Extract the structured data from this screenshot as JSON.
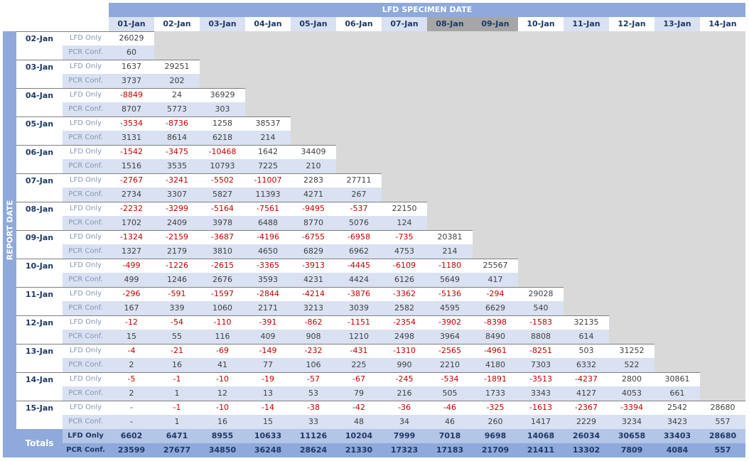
{
  "title": "LFD SPECIMEN DATE",
  "side_title": "REPORT DATE",
  "columns": [
    "01-Jan",
    "02-Jan",
    "03-Jan",
    "04-Jan",
    "05-Jan",
    "06-Jan",
    "07-Jan",
    "08-Jan",
    "09-Jan",
    "10-Jan",
    "11-Jan",
    "12-Jan",
    "13-Jan",
    "14-Jan"
  ],
  "highlight_columns": [
    "08-Jan",
    "09-Jan"
  ],
  "row_labels": {
    "lfd": "LFD Only",
    "pcr": "PCR Conf."
  },
  "rows": [
    {
      "date": "02-Jan",
      "lfd": [
        "26029"
      ],
      "pcr": [
        "60"
      ]
    },
    {
      "date": "03-Jan",
      "lfd": [
        "1637",
        "29251"
      ],
      "pcr": [
        "3737",
        "202"
      ]
    },
    {
      "date": "04-Jan",
      "lfd": [
        "-8849",
        "24",
        "36929"
      ],
      "pcr": [
        "8707",
        "5773",
        "303"
      ]
    },
    {
      "date": "05-Jan",
      "lfd": [
        "-3534",
        "-8736",
        "1258",
        "38537"
      ],
      "pcr": [
        "3131",
        "8614",
        "6218",
        "214"
      ]
    },
    {
      "date": "06-Jan",
      "lfd": [
        "-1542",
        "-3475",
        "-10468",
        "1642",
        "34409"
      ],
      "pcr": [
        "1516",
        "3535",
        "10793",
        "7225",
        "210"
      ]
    },
    {
      "date": "07-Jan",
      "lfd": [
        "-2767",
        "-3241",
        "-5502",
        "-11007",
        "2283",
        "27711"
      ],
      "pcr": [
        "2734",
        "3307",
        "5827",
        "11393",
        "4271",
        "267"
      ]
    },
    {
      "date": "08-Jan",
      "lfd": [
        "-2232",
        "-3299",
        "-5164",
        "-7561",
        "-9495",
        "-537",
        "22150"
      ],
      "pcr": [
        "1702",
        "2409",
        "3978",
        "6488",
        "8770",
        "5076",
        "124"
      ]
    },
    {
      "date": "09-Jan",
      "lfd": [
        "-1324",
        "-2159",
        "-3687",
        "-4196",
        "-6755",
        "-6958",
        "-735",
        "20381"
      ],
      "pcr": [
        "1327",
        "2179",
        "3810",
        "4650",
        "6829",
        "6962",
        "4753",
        "214"
      ]
    },
    {
      "date": "10-Jan",
      "lfd": [
        "-499",
        "-1226",
        "-2615",
        "-3365",
        "-3913",
        "-4445",
        "-6109",
        "-1180",
        "25567"
      ],
      "pcr": [
        "499",
        "1246",
        "2676",
        "3593",
        "4231",
        "4424",
        "6126",
        "5649",
        "417"
      ]
    },
    {
      "date": "11-Jan",
      "lfd": [
        "-296",
        "-591",
        "-1597",
        "-2844",
        "-4214",
        "-3876",
        "-3362",
        "-5136",
        "-294",
        "29028"
      ],
      "pcr": [
        "167",
        "339",
        "1060",
        "2171",
        "3213",
        "3039",
        "2582",
        "4595",
        "6629",
        "540"
      ]
    },
    {
      "date": "12-Jan",
      "lfd": [
        "-12",
        "-54",
        "-110",
        "-391",
        "-862",
        "-1151",
        "-2354",
        "-3902",
        "-8398",
        "-1583",
        "32135"
      ],
      "pcr": [
        "15",
        "55",
        "116",
        "409",
        "908",
        "1210",
        "2498",
        "3964",
        "8490",
        "8808",
        "614"
      ]
    },
    {
      "date": "13-Jan",
      "lfd": [
        "-4",
        "-21",
        "-69",
        "-149",
        "-232",
        "-431",
        "-1310",
        "-2565",
        "-4961",
        "-8251",
        "503",
        "31252"
      ],
      "pcr": [
        "2",
        "16",
        "41",
        "77",
        "106",
        "225",
        "990",
        "2210",
        "4180",
        "7303",
        "6332",
        "522"
      ]
    },
    {
      "date": "14-Jan",
      "lfd": [
        "-5",
        "-1",
        "-10",
        "-19",
        "-57",
        "-67",
        "-245",
        "-534",
        "-1891",
        "-3513",
        "-4237",
        "2800",
        "30861"
      ],
      "pcr": [
        "2",
        "1",
        "12",
        "13",
        "53",
        "79",
        "216",
        "505",
        "1733",
        "3343",
        "4127",
        "4053",
        "661"
      ]
    },
    {
      "date": "15-Jan",
      "lfd": [
        "-",
        "-1",
        "-10",
        "-14",
        "-38",
        "-42",
        "-36",
        "-46",
        "-325",
        "-1613",
        "-2367",
        "-3394",
        "2542",
        "28680"
      ],
      "pcr": [
        "-",
        "1",
        "16",
        "15",
        "33",
        "48",
        "34",
        "46",
        "260",
        "1417",
        "2229",
        "3234",
        "3423",
        "557"
      ]
    }
  ],
  "totals": {
    "label": "Totals",
    "lfd": [
      "6602",
      "6471",
      "8955",
      "10633",
      "11126",
      "10204",
      "7999",
      "7018",
      "9698",
      "14068",
      "26034",
      "30658",
      "33403",
      "28680"
    ],
    "pcr": [
      "23599",
      "27677",
      "34850",
      "36248",
      "28624",
      "21330",
      "17323",
      "17183",
      "21709",
      "21411",
      "13302",
      "7809",
      "4084",
      "557"
    ]
  },
  "colors": {
    "header_blue": "#8ea9db",
    "light_blue": "#d9e1f2",
    "negative": "#c00000",
    "text_dark": "#1f3864",
    "empty": "#d9d9d9"
  }
}
